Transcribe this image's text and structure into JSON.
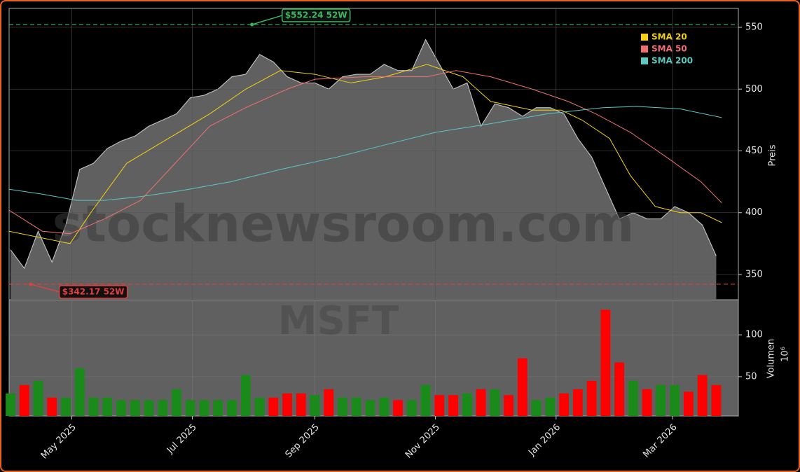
{
  "chart_data": [
    {
      "type": "area",
      "title": "MSFT",
      "watermark": "stocknewsroom.com",
      "ylabel": "Preis",
      "color": "#606060",
      "line_color": "#bbbbbb",
      "x": [
        0,
        1,
        2,
        3,
        4,
        5,
        6,
        7,
        8,
        9,
        10,
        11,
        12,
        13,
        14,
        15,
        16,
        17,
        18,
        19,
        20,
        21,
        22,
        23,
        24,
        25,
        26,
        27,
        28,
        29,
        30,
        31,
        32,
        33,
        34,
        35,
        36,
        37,
        38,
        39,
        40,
        41,
        42,
        43,
        44,
        45,
        46,
        47,
        48,
        49,
        50,
        51
      ],
      "values": [
        370,
        355,
        385,
        360,
        390,
        435,
        440,
        452,
        458,
        462,
        470,
        475,
        480,
        493,
        495,
        500,
        510,
        512,
        528,
        522,
        510,
        505,
        505,
        500,
        510,
        512,
        512,
        520,
        515,
        515,
        540,
        520,
        500,
        505,
        470,
        488,
        485,
        478,
        485,
        485,
        480,
        460,
        445,
        420,
        395,
        400,
        395,
        395,
        405,
        400,
        390,
        365
      ],
      "series": [
        {
          "name": "SMA 20",
          "color": "#f5d10f",
          "x": [
            -0.1,
            4.3,
            5.8,
            8.4,
            11.4,
            14.4,
            17,
            19.5,
            22,
            24.6,
            27.1,
            30.1,
            32.7,
            34.7,
            37.7,
            39.8,
            41.3,
            43.3,
            44.8,
            46.6,
            48.4,
            49.9,
            51.4
          ],
          "values": [
            385,
            375,
            400,
            440,
            460,
            480,
            500,
            515,
            512,
            505,
            510,
            520,
            510,
            490,
            483,
            483,
            475,
            460,
            430,
            405,
            400,
            400,
            392
          ]
        },
        {
          "name": "SMA 50",
          "color": "#f07070",
          "x": [
            -0.1,
            2.3,
            4.3,
            6.8,
            9.4,
            11.9,
            14.4,
            17,
            20,
            22,
            25.6,
            30.1,
            32.2,
            34.7,
            37.7,
            40.3,
            42.3,
            44.8,
            47.4,
            49.9,
            51.4
          ],
          "values": [
            402,
            385,
            383,
            395,
            410,
            440,
            470,
            485,
            500,
            508,
            510,
            510,
            515,
            510,
            500,
            490,
            480,
            465,
            445,
            425,
            408
          ]
        },
        {
          "name": "SMA 200",
          "color": "#5cc8c0",
          "x": [
            -0.1,
            2.3,
            4.8,
            6.8,
            9.4,
            12.4,
            15.9,
            19.5,
            23.6,
            27.1,
            30.7,
            34.7,
            38.8,
            42.8,
            45.3,
            48.4,
            51.4
          ],
          "values": [
            419,
            415,
            410,
            410,
            413,
            418,
            425,
            435,
            445,
            455,
            465,
            472,
            480,
            485,
            486,
            484,
            477
          ]
        }
      ],
      "reference_lines": [
        {
          "value": 552.24,
          "label": "$552.24 52W",
          "x": 17.3,
          "color": "#3cb860"
        },
        {
          "value": 342.17,
          "label": "$342.17 52W",
          "x": 1.3,
          "color": "#e04040"
        }
      ],
      "xlim": [
        -0.1,
        52.6
      ],
      "ylim": [
        329.6,
        565.3
      ],
      "yticks": [
        350,
        400,
        450,
        500,
        550
      ],
      "grid": true,
      "legend": "upper right"
    },
    {
      "type": "bar",
      "ylabel": "Volumen",
      "yunit": "10⁶",
      "up_color": "#1a8a1a",
      "down_color": "#ff0000",
      "x": [
        0,
        1,
        2,
        3,
        4,
        5,
        6,
        7,
        8,
        9,
        10,
        11,
        12,
        13,
        14,
        15,
        16,
        17,
        18,
        19,
        20,
        21,
        22,
        23,
        24,
        25,
        26,
        27,
        28,
        29,
        30,
        31,
        32,
        33,
        34,
        35,
        36,
        37,
        38,
        39,
        40,
        41,
        42,
        43,
        44,
        45,
        46,
        47,
        48,
        49,
        50,
        51
      ],
      "values": [
        30,
        40,
        45,
        25,
        25,
        60,
        25,
        25,
        22,
        22,
        22,
        22,
        35,
        22,
        22,
        22,
        22,
        52,
        25,
        25,
        30,
        30,
        28,
        35,
        25,
        25,
        22,
        25,
        22,
        22,
        40,
        28,
        28,
        30,
        35,
        35,
        28,
        72,
        22,
        25,
        30,
        35,
        45,
        130,
        67,
        45,
        35,
        40,
        40,
        32,
        52,
        40
      ],
      "xlim": [
        -0.1,
        52.6
      ],
      "ylim": [
        3,
        142
      ],
      "yticks": [
        50,
        100
      ],
      "xticks": [
        {
          "value": 4.43,
          "label": "May 2025"
        },
        {
          "value": 13.14,
          "label": "Jul 2025"
        },
        {
          "value": 22,
          "label": "Sep 2025"
        },
        {
          "value": 30.71,
          "label": "Nov 2025"
        },
        {
          "value": 39.43,
          "label": "Jan 2026"
        },
        {
          "value": 47.86,
          "label": "Mar 2026"
        }
      ],
      "grid": true
    }
  ]
}
